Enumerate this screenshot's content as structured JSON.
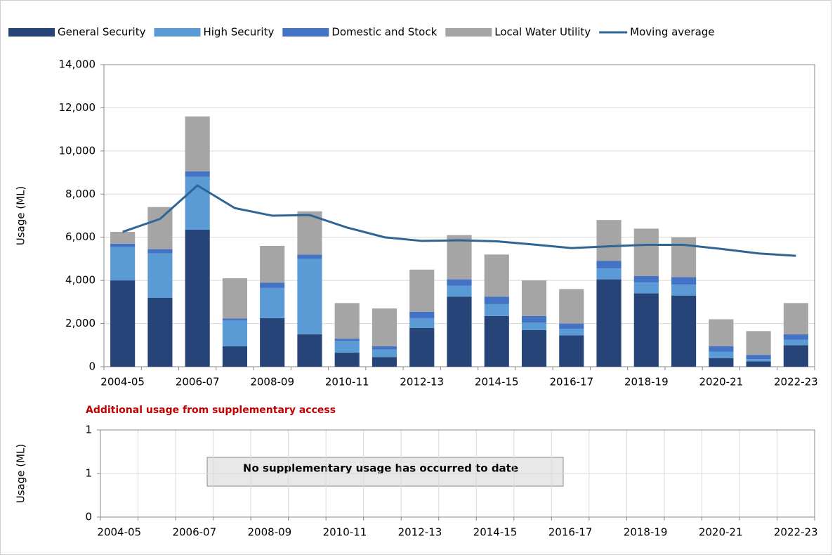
{
  "chart_data": [
    {
      "type": "bar",
      "stacked": true,
      "ylabel": "Usage (ML)",
      "categories": [
        "2004-05",
        null,
        "2006-07",
        null,
        "2008-09",
        null,
        "2010-11",
        null,
        "2012-13",
        null,
        "2014-15",
        null,
        "2016-17",
        null,
        "2018-19",
        null,
        "2020-21",
        null,
        "2022-23"
      ],
      "series": [
        {
          "name": "General Security",
          "color": "#264478",
          "values": [
            4000,
            3200,
            6350,
            950,
            2250,
            1500,
            650,
            450,
            1800,
            3250,
            2350,
            1700,
            1450,
            4050,
            3400,
            3300,
            400,
            250,
            1000
          ]
        },
        {
          "name": "High Security",
          "color": "#5b9bd5",
          "values": [
            1550,
            2050,
            2450,
            1200,
            1400,
            3500,
            550,
            350,
            450,
            500,
            550,
            350,
            300,
            500,
            500,
            500,
            300,
            100,
            250
          ]
        },
        {
          "name": "Domestic and Stock",
          "color": "#4472c4",
          "values": [
            150,
            200,
            250,
            80,
            250,
            200,
            100,
            150,
            300,
            300,
            350,
            300,
            250,
            350,
            300,
            350,
            250,
            200,
            250
          ]
        },
        {
          "name": "Local Water Utility",
          "color": "#a5a5a5",
          "values": [
            550,
            1950,
            2550,
            1870,
            1700,
            2000,
            1650,
            1750,
            1950,
            2050,
            1950,
            1650,
            1600,
            1900,
            2200,
            1850,
            1250,
            1100,
            1450
          ]
        },
        {
          "name": "Moving average",
          "color": "#2e6496",
          "type": "line",
          "values": [
            6250,
            6850,
            8400,
            7350,
            7000,
            7030,
            6450,
            6000,
            5830,
            5860,
            5810,
            5660,
            5500,
            5580,
            5650,
            5650,
            5460,
            5250,
            5140
          ]
        }
      ],
      "ylim": [
        0,
        14000
      ],
      "yticks": [
        0,
        {
          "value": 2000,
          "label": "2,000"
        },
        {
          "value": 4000,
          "label": "4,000"
        },
        {
          "value": 6000,
          "label": "6,000"
        },
        {
          "value": 8000,
          "label": "8,000"
        },
        {
          "value": 10000,
          "label": "10,000"
        },
        {
          "value": 12000,
          "label": "12,000"
        },
        {
          "value": 14000,
          "label": "14,000"
        }
      ],
      "grid": true,
      "legend": "top"
    },
    {
      "type": "bar",
      "title": "Additional usage from supplementary access",
      "ylabel": "Usage (ML)",
      "categories": [
        "2004-05",
        null,
        "2006-07",
        null,
        "2008-09",
        null,
        "2010-11",
        null,
        "2012-13",
        null,
        "2014-15",
        null,
        "2016-17",
        null,
        "2018-19",
        null,
        "2020-21",
        null,
        "2022-23"
      ],
      "series": [],
      "ylim": [
        0,
        1
      ],
      "yticks": [
        0,
        {
          "value": 0.5,
          "label": "1"
        },
        1
      ],
      "annotation": "No supplementary usage has occurred to date",
      "grid": true
    }
  ]
}
